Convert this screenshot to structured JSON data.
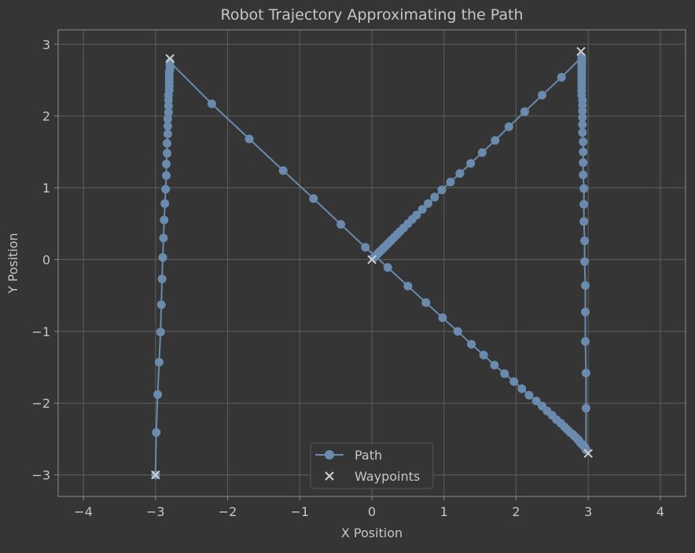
{
  "chart_data": {
    "type": "line",
    "title": "Robot Trajectory Approximating the Path",
    "xlabel": "X Position",
    "ylabel": "Y Position",
    "xlim": [
      -4.35,
      4.35
    ],
    "ylim": [
      -3.3,
      3.2
    ],
    "xticks": [
      -4,
      -3,
      -2,
      -1,
      0,
      1,
      2,
      3,
      4
    ],
    "yticks": [
      -3,
      -2,
      -1,
      0,
      1,
      2,
      3
    ],
    "xtick_labels": [
      "−4",
      "−3",
      "−2",
      "−1",
      "0",
      "1",
      "2",
      "3",
      "4"
    ],
    "ytick_labels": [
      "−3",
      "−2",
      "−1",
      "0",
      "1",
      "2",
      "3"
    ],
    "grid": true,
    "legend_position": "bottom-center",
    "colors": {
      "path": "#6a8bad",
      "waypoints": "#d0d0d0",
      "background": "#353535",
      "grid": "#5f5f5f"
    },
    "series": [
      {
        "name": "Path",
        "marker": "circle",
        "points": [
          [
            -3.0,
            -3.0
          ],
          [
            -2.99,
            -2.41
          ],
          [
            -2.97,
            -1.88
          ],
          [
            -2.95,
            -1.43
          ],
          [
            -2.93,
            -1.01
          ],
          [
            -2.92,
            -0.63
          ],
          [
            -2.91,
            -0.27
          ],
          [
            -2.9,
            0.03
          ],
          [
            -2.89,
            0.3
          ],
          [
            -2.88,
            0.55
          ],
          [
            -2.87,
            0.78
          ],
          [
            -2.86,
            0.98
          ],
          [
            -2.85,
            1.17
          ],
          [
            -2.85,
            1.33
          ],
          [
            -2.84,
            1.48
          ],
          [
            -2.84,
            1.62
          ],
          [
            -2.83,
            1.75
          ],
          [
            -2.83,
            1.86
          ],
          [
            -2.83,
            1.96
          ],
          [
            -2.82,
            2.05
          ],
          [
            -2.82,
            2.14
          ],
          [
            -2.82,
            2.22
          ],
          [
            -2.82,
            2.29
          ],
          [
            -2.81,
            2.36
          ],
          [
            -2.81,
            2.42
          ],
          [
            -2.81,
            2.47
          ],
          [
            -2.81,
            2.52
          ],
          [
            -2.81,
            2.57
          ],
          [
            -2.81,
            2.61
          ],
          [
            -2.8,
            2.65
          ],
          [
            -2.8,
            2.69
          ],
          [
            -2.8,
            2.72
          ],
          [
            -2.8,
            2.75
          ],
          [
            -2.22,
            2.17
          ],
          [
            -1.7,
            1.68
          ],
          [
            -1.23,
            1.24
          ],
          [
            -0.81,
            0.85
          ],
          [
            -0.43,
            0.49
          ],
          [
            -0.09,
            0.17
          ],
          [
            0.22,
            -0.11
          ],
          [
            0.5,
            -0.37
          ],
          [
            0.75,
            -0.6
          ],
          [
            0.98,
            -0.81
          ],
          [
            1.19,
            -1.0
          ],
          [
            1.38,
            -1.18
          ],
          [
            1.55,
            -1.33
          ],
          [
            1.7,
            -1.47
          ],
          [
            1.84,
            -1.59
          ],
          [
            1.97,
            -1.7
          ],
          [
            2.08,
            -1.8
          ],
          [
            2.18,
            -1.89
          ],
          [
            2.28,
            -1.97
          ],
          [
            2.36,
            -2.04
          ],
          [
            2.43,
            -2.11
          ],
          [
            2.5,
            -2.17
          ],
          [
            2.56,
            -2.23
          ],
          [
            2.62,
            -2.28
          ],
          [
            2.67,
            -2.33
          ],
          [
            2.71,
            -2.37
          ],
          [
            2.75,
            -2.41
          ],
          [
            2.79,
            -2.44
          ],
          [
            2.82,
            -2.47
          ],
          [
            2.85,
            -2.5
          ],
          [
            2.87,
            -2.52
          ],
          [
            2.89,
            -2.55
          ],
          [
            2.91,
            -2.57
          ],
          [
            2.93,
            -2.59
          ],
          [
            2.95,
            -2.61
          ],
          [
            2.96,
            -2.63
          ],
          [
            2.97,
            -2.65
          ],
          [
            2.97,
            -2.07
          ],
          [
            2.97,
            -1.58
          ],
          [
            2.96,
            -1.14
          ],
          [
            2.96,
            -0.73
          ],
          [
            2.96,
            -0.36
          ],
          [
            2.95,
            -0.03
          ],
          [
            2.95,
            0.26
          ],
          [
            2.94,
            0.53
          ],
          [
            2.94,
            0.77
          ],
          [
            2.94,
            0.99
          ],
          [
            2.93,
            1.18
          ],
          [
            2.93,
            1.35
          ],
          [
            2.93,
            1.5
          ],
          [
            2.93,
            1.64
          ],
          [
            2.92,
            1.77
          ],
          [
            2.92,
            1.88
          ],
          [
            2.92,
            1.98
          ],
          [
            2.92,
            2.07
          ],
          [
            2.92,
            2.15
          ],
          [
            2.92,
            2.22
          ],
          [
            2.91,
            2.29
          ],
          [
            2.91,
            2.35
          ],
          [
            2.91,
            2.41
          ],
          [
            2.91,
            2.46
          ],
          [
            2.91,
            2.51
          ],
          [
            2.91,
            2.55
          ],
          [
            2.91,
            2.59
          ],
          [
            2.91,
            2.63
          ],
          [
            2.91,
            2.66
          ],
          [
            2.91,
            2.69
          ],
          [
            2.91,
            2.72
          ],
          [
            2.91,
            2.74
          ],
          [
            2.91,
            2.77
          ],
          [
            2.91,
            2.79
          ],
          [
            2.91,
            2.81
          ],
          [
            2.91,
            2.82
          ],
          [
            2.63,
            2.54
          ],
          [
            2.36,
            2.29
          ],
          [
            2.12,
            2.06
          ],
          [
            1.9,
            1.85
          ],
          [
            1.71,
            1.66
          ],
          [
            1.53,
            1.49
          ],
          [
            1.37,
            1.34
          ],
          [
            1.22,
            1.2
          ],
          [
            1.09,
            1.08
          ],
          [
            0.97,
            0.97
          ],
          [
            0.87,
            0.87
          ],
          [
            0.78,
            0.78
          ],
          [
            0.7,
            0.7
          ],
          [
            0.62,
            0.62
          ],
          [
            0.56,
            0.56
          ],
          [
            0.5,
            0.5
          ],
          [
            0.44,
            0.44
          ],
          [
            0.39,
            0.39
          ],
          [
            0.35,
            0.35
          ],
          [
            0.31,
            0.31
          ],
          [
            0.27,
            0.27
          ],
          [
            0.24,
            0.24
          ],
          [
            0.21,
            0.21
          ],
          [
            0.18,
            0.18
          ],
          [
            0.16,
            0.16
          ],
          [
            0.14,
            0.14
          ],
          [
            0.12,
            0.12
          ],
          [
            0.1,
            0.1
          ],
          [
            0.08,
            0.08
          ],
          [
            0.07,
            0.07
          ],
          [
            0.06,
            0.06
          ],
          [
            0.05,
            0.05
          ],
          [
            0.04,
            0.04
          ],
          [
            0.03,
            0.03
          ]
        ]
      },
      {
        "name": "Waypoints",
        "marker": "x",
        "points": [
          [
            -3.0,
            -3.0
          ],
          [
            -2.8,
            2.8
          ],
          [
            0.0,
            0.0
          ],
          [
            3.0,
            -2.7
          ],
          [
            2.9,
            2.9
          ]
        ]
      }
    ]
  },
  "legend": {
    "path_label": "Path",
    "waypoints_label": "Waypoints"
  }
}
